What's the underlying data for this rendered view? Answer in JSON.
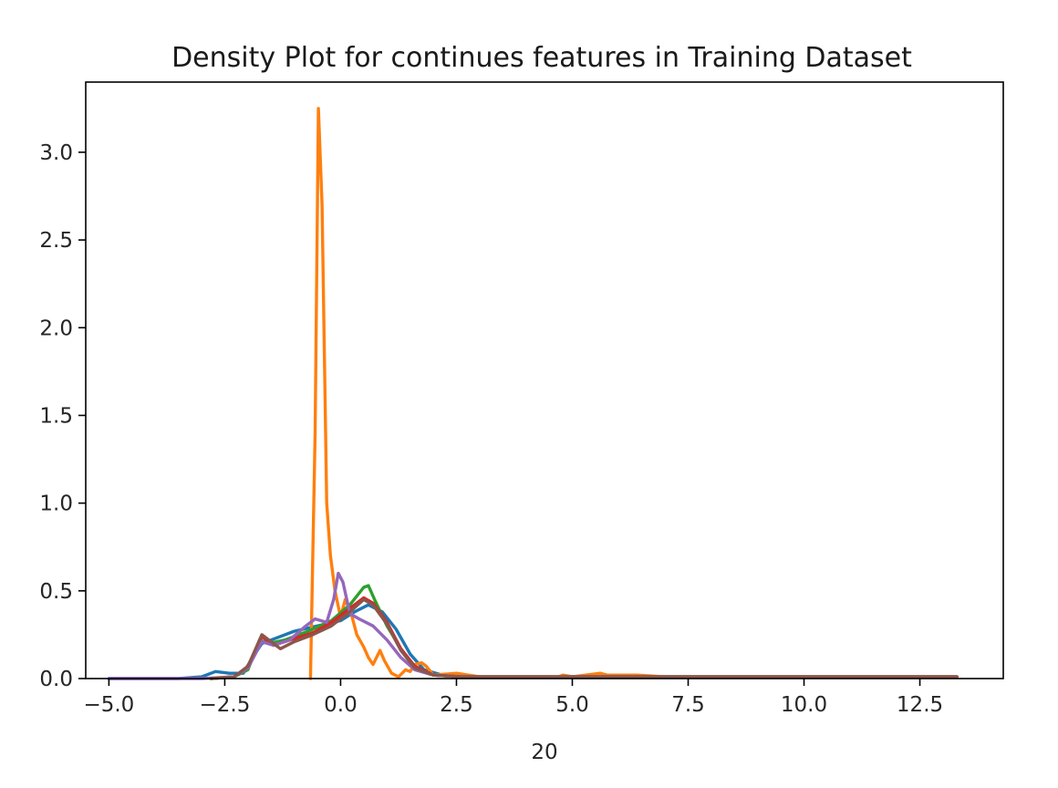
{
  "chart_data": {
    "type": "line",
    "title": "Density Plot for continues features in Training Dataset",
    "xlabel": "20",
    "ylabel": "",
    "xlim": [
      -5.5,
      14.3
    ],
    "ylim": [
      0,
      3.4
    ],
    "xticks": [
      -5.0,
      -2.5,
      0.0,
      2.5,
      5.0,
      7.5,
      10.0,
      12.5
    ],
    "xtick_labels": [
      "−5.0",
      "−2.5",
      "0.0",
      "2.5",
      "5.0",
      "7.5",
      "10.0",
      "12.5"
    ],
    "yticks": [
      0.0,
      0.5,
      1.0,
      1.5,
      2.0,
      2.5,
      3.0
    ],
    "ytick_labels": [
      "0.0",
      "0.5",
      "1.0",
      "1.5",
      "2.0",
      "2.5",
      "3.0"
    ],
    "grid": false,
    "legend": false,
    "series": [
      {
        "color": "#1f77b4",
        "points": [
          [
            -5.0,
            0
          ],
          [
            -3.5,
            0
          ],
          [
            -3.0,
            0.01
          ],
          [
            -2.7,
            0.04
          ],
          [
            -2.4,
            0.03
          ],
          [
            -2.1,
            0.03
          ],
          [
            -1.9,
            0.12
          ],
          [
            -1.7,
            0.2
          ],
          [
            -1.4,
            0.23
          ],
          [
            -1.0,
            0.27
          ],
          [
            -0.5,
            0.3
          ],
          [
            0.0,
            0.33
          ],
          [
            0.3,
            0.38
          ],
          [
            0.6,
            0.42
          ],
          [
            0.9,
            0.38
          ],
          [
            1.2,
            0.28
          ],
          [
            1.5,
            0.14
          ],
          [
            1.8,
            0.05
          ],
          [
            2.2,
            0.02
          ],
          [
            3.0,
            0.01
          ],
          [
            5.0,
            0.01
          ],
          [
            8.0,
            0.01
          ],
          [
            13.3,
            0.01
          ]
        ]
      },
      {
        "color": "#ff7f0e",
        "points": [
          [
            -0.65,
            0
          ],
          [
            -0.55,
            1.4
          ],
          [
            -0.48,
            3.25
          ],
          [
            -0.4,
            2.7
          ],
          [
            -0.3,
            1.0
          ],
          [
            -0.22,
            0.7
          ],
          [
            -0.12,
            0.5
          ],
          [
            0.0,
            0.35
          ],
          [
            0.1,
            0.45
          ],
          [
            0.22,
            0.38
          ],
          [
            0.35,
            0.25
          ],
          [
            0.5,
            0.18
          ],
          [
            0.6,
            0.12
          ],
          [
            0.7,
            0.08
          ],
          [
            0.85,
            0.16
          ],
          [
            0.95,
            0.1
          ],
          [
            1.1,
            0.03
          ],
          [
            1.25,
            0.01
          ],
          [
            1.4,
            0.05
          ],
          [
            1.5,
            0.04
          ],
          [
            1.6,
            0.08
          ],
          [
            1.75,
            0.09
          ],
          [
            1.85,
            0.07
          ],
          [
            2.0,
            0.02
          ],
          [
            2.5,
            0.03
          ],
          [
            3.0,
            0.01
          ],
          [
            4.7,
            0.01
          ],
          [
            4.8,
            0.02
          ],
          [
            5.0,
            0.01
          ],
          [
            5.6,
            0.03
          ],
          [
            5.75,
            0.02
          ],
          [
            6.4,
            0.02
          ],
          [
            7.0,
            0.01
          ],
          [
            10.0,
            0.01
          ],
          [
            13.3,
            0.01
          ]
        ]
      },
      {
        "color": "#2ca02c",
        "points": [
          [
            -2.8,
            0
          ],
          [
            -2.3,
            0.01
          ],
          [
            -2.0,
            0.05
          ],
          [
            -1.75,
            0.22
          ],
          [
            -1.55,
            0.2
          ],
          [
            -1.2,
            0.22
          ],
          [
            -0.7,
            0.27
          ],
          [
            -0.2,
            0.33
          ],
          [
            0.2,
            0.42
          ],
          [
            0.5,
            0.52
          ],
          [
            0.6,
            0.53
          ],
          [
            0.75,
            0.44
          ],
          [
            1.0,
            0.3
          ],
          [
            1.3,
            0.17
          ],
          [
            1.6,
            0.07
          ],
          [
            2.0,
            0.02
          ],
          [
            2.6,
            0.01
          ],
          [
            5.0,
            0.01
          ],
          [
            10.0,
            0.01
          ],
          [
            13.3,
            0.01
          ]
        ]
      },
      {
        "color": "#d62728",
        "points": [
          [
            -2.8,
            0
          ],
          [
            -2.3,
            0.01
          ],
          [
            -2.0,
            0.06
          ],
          [
            -1.7,
            0.24
          ],
          [
            -1.45,
            0.19
          ],
          [
            -1.1,
            0.22
          ],
          [
            -0.6,
            0.26
          ],
          [
            -0.2,
            0.32
          ],
          [
            0.2,
            0.4
          ],
          [
            0.5,
            0.46
          ],
          [
            0.7,
            0.43
          ],
          [
            1.0,
            0.32
          ],
          [
            1.3,
            0.17
          ],
          [
            1.6,
            0.07
          ],
          [
            2.0,
            0.02
          ],
          [
            2.6,
            0.01
          ],
          [
            5.0,
            0.01
          ],
          [
            10.0,
            0.01
          ],
          [
            13.3,
            0.01
          ]
        ]
      },
      {
        "color": "#9467bd",
        "points": [
          [
            -5.0,
            0
          ],
          [
            -3.0,
            0
          ],
          [
            -2.3,
            0.01
          ],
          [
            -2.0,
            0.06
          ],
          [
            -1.7,
            0.21
          ],
          [
            -1.45,
            0.19
          ],
          [
            -1.1,
            0.22
          ],
          [
            -0.75,
            0.3
          ],
          [
            -0.55,
            0.34
          ],
          [
            -0.3,
            0.32
          ],
          [
            -0.15,
            0.45
          ],
          [
            -0.05,
            0.6
          ],
          [
            0.05,
            0.55
          ],
          [
            0.2,
            0.37
          ],
          [
            0.4,
            0.34
          ],
          [
            0.7,
            0.3
          ],
          [
            1.0,
            0.22
          ],
          [
            1.3,
            0.12
          ],
          [
            1.6,
            0.05
          ],
          [
            2.0,
            0.02
          ],
          [
            2.6,
            0.01
          ],
          [
            5.0,
            0.01
          ],
          [
            10.0,
            0.01
          ],
          [
            13.3,
            0.01
          ]
        ]
      },
      {
        "color": "#8c564b",
        "points": [
          [
            -2.8,
            0
          ],
          [
            -2.3,
            0.01
          ],
          [
            -2.0,
            0.07
          ],
          [
            -1.7,
            0.25
          ],
          [
            -1.5,
            0.21
          ],
          [
            -1.3,
            0.17
          ],
          [
            -1.0,
            0.21
          ],
          [
            -0.6,
            0.25
          ],
          [
            -0.2,
            0.3
          ],
          [
            0.2,
            0.38
          ],
          [
            0.5,
            0.45
          ],
          [
            0.7,
            0.42
          ],
          [
            1.0,
            0.31
          ],
          [
            1.3,
            0.16
          ],
          [
            1.6,
            0.06
          ],
          [
            2.0,
            0.02
          ],
          [
            2.6,
            0.01
          ],
          [
            5.0,
            0.01
          ],
          [
            10.0,
            0.01
          ],
          [
            13.3,
            0.01
          ]
        ]
      }
    ]
  }
}
